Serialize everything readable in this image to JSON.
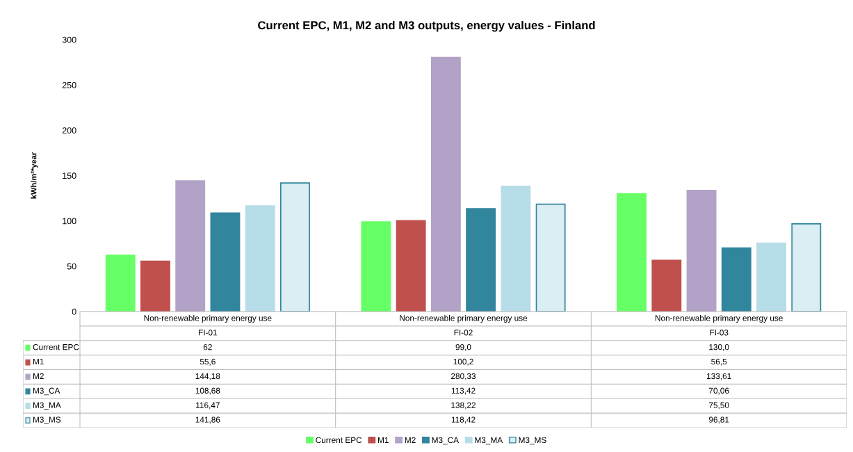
{
  "chart_data": {
    "type": "bar",
    "title": "Current EPC, M1, M2 and M3 outputs, energy values - Finland",
    "ylabel": "kWh/m²*year",
    "categories": [
      "Non-renewable primary energy use\nFI-01",
      "Non-renewable primary energy use\nFI-02",
      "Non-renewable primary energy use\nFI-03"
    ],
    "series": [
      {
        "name": "Current EPC",
        "color": "#66ff66",
        "values": [
          62,
          99.0,
          130.0
        ],
        "value_labels": [
          "62",
          "99,0",
          "130,0"
        ]
      },
      {
        "name": "M1",
        "color": "#c0504d",
        "values": [
          55.6,
          100.2,
          56.5
        ],
        "value_labels": [
          "55,6",
          "100,2",
          "56,5"
        ]
      },
      {
        "name": "M2",
        "color": "#b3a2c7",
        "values": [
          144.18,
          280.33,
          133.61
        ],
        "value_labels": [
          "144,18",
          "280,33",
          "133,61"
        ]
      },
      {
        "name": "M3_CA",
        "color": "#31859c",
        "values": [
          108.68,
          113.42,
          70.06
        ],
        "value_labels": [
          "108,68",
          "113,42",
          "70,06"
        ]
      },
      {
        "name": "M3_MA",
        "color": "#b7dde8",
        "values": [
          116.47,
          138.22,
          75.5
        ],
        "value_labels": [
          "116,47",
          "138,22",
          "75,50"
        ]
      },
      {
        "name": "M3_MS",
        "color": "#dbeef4",
        "values": [
          141.86,
          118.42,
          96.81
        ],
        "value_labels": [
          "141,86",
          "118,42",
          "96,81"
        ]
      }
    ],
    "ylim": [
      0,
      300
    ],
    "yticks": [
      0,
      50,
      100,
      150,
      200,
      250,
      300
    ],
    "grid": false,
    "legend": "bottom"
  }
}
